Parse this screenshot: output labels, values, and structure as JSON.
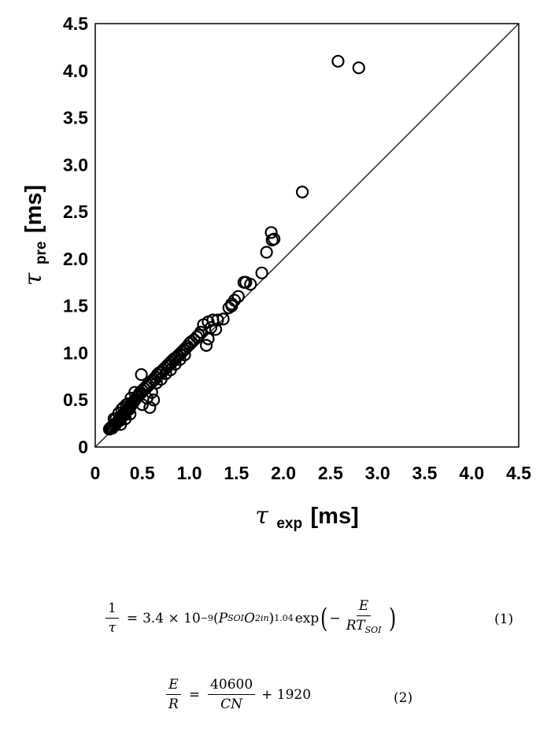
{
  "chart_data": {
    "type": "scatter",
    "xlabel": {
      "symbol": "τ",
      "subscript": "exp",
      "unit": "[ms]"
    },
    "ylabel": {
      "symbol": "τ",
      "subscript": "pre",
      "unit": "[ms]"
    },
    "xlim": [
      0,
      4.5
    ],
    "ylim": [
      0,
      4.5
    ],
    "xticks": [
      "0",
      "0.5",
      "1.0",
      "1.5",
      "2.0",
      "2.5",
      "3.0",
      "3.5",
      "4.0",
      "4.5"
    ],
    "yticks": [
      "0",
      "0.5",
      "1.0",
      "1.5",
      "2.0",
      "2.5",
      "3.0",
      "3.5",
      "4.0",
      "4.5"
    ],
    "grid": false,
    "reference_line": "y = x",
    "marker": "open-circle",
    "series": [
      {
        "points": [
          [
            0.15,
            0.19
          ],
          [
            0.16,
            0.2
          ],
          [
            0.17,
            0.21
          ],
          [
            0.18,
            0.2
          ],
          [
            0.19,
            0.22
          ],
          [
            0.2,
            0.24
          ],
          [
            0.21,
            0.23
          ],
          [
            0.22,
            0.25
          ],
          [
            0.23,
            0.26
          ],
          [
            0.24,
            0.27
          ],
          [
            0.25,
            0.29
          ],
          [
            0.26,
            0.28
          ],
          [
            0.27,
            0.31
          ],
          [
            0.28,
            0.32
          ],
          [
            0.29,
            0.33
          ],
          [
            0.3,
            0.35
          ],
          [
            0.31,
            0.34
          ],
          [
            0.32,
            0.37
          ],
          [
            0.33,
            0.38
          ],
          [
            0.34,
            0.39
          ],
          [
            0.35,
            0.41
          ],
          [
            0.36,
            0.4
          ],
          [
            0.37,
            0.43
          ],
          [
            0.38,
            0.44
          ],
          [
            0.39,
            0.46
          ],
          [
            0.4,
            0.47
          ],
          [
            0.41,
            0.48
          ],
          [
            0.42,
            0.5
          ],
          [
            0.43,
            0.51
          ],
          [
            0.44,
            0.53
          ],
          [
            0.45,
            0.54
          ],
          [
            0.46,
            0.55
          ],
          [
            0.47,
            0.57
          ],
          [
            0.48,
            0.58
          ],
          [
            0.5,
            0.6
          ],
          [
            0.52,
            0.62
          ],
          [
            0.54,
            0.64
          ],
          [
            0.56,
            0.66
          ],
          [
            0.58,
            0.68
          ],
          [
            0.6,
            0.7
          ],
          [
            0.62,
            0.72
          ],
          [
            0.64,
            0.74
          ],
          [
            0.66,
            0.77
          ],
          [
            0.68,
            0.79
          ],
          [
            0.7,
            0.8
          ],
          [
            0.72,
            0.82
          ],
          [
            0.74,
            0.84
          ],
          [
            0.76,
            0.86
          ],
          [
            0.78,
            0.88
          ],
          [
            0.8,
            0.9
          ],
          [
            0.82,
            0.92
          ],
          [
            0.84,
            0.94
          ],
          [
            0.86,
            0.95
          ],
          [
            0.88,
            0.97
          ],
          [
            0.9,
            0.99
          ],
          [
            0.92,
            1.01
          ],
          [
            0.94,
            1.03
          ],
          [
            0.96,
            1.05
          ],
          [
            0.98,
            1.07
          ],
          [
            1.0,
            1.1
          ],
          [
            1.02,
            1.12
          ],
          [
            1.05,
            1.14
          ],
          [
            1.08,
            1.17
          ],
          [
            1.1,
            1.19
          ],
          [
            1.12,
            1.22
          ],
          [
            0.22,
            0.3
          ],
          [
            0.25,
            0.36
          ],
          [
            0.3,
            0.42
          ],
          [
            0.35,
            0.46
          ],
          [
            0.38,
            0.52
          ],
          [
            0.42,
            0.58
          ],
          [
            0.2,
            0.3
          ],
          [
            0.28,
            0.4
          ],
          [
            0.33,
            0.45
          ],
          [
            0.27,
            0.24
          ],
          [
            0.32,
            0.3
          ],
          [
            0.37,
            0.35
          ],
          [
            0.5,
            0.45
          ],
          [
            0.55,
            0.52
          ],
          [
            0.6,
            0.58
          ],
          [
            0.65,
            0.68
          ],
          [
            0.7,
            0.72
          ],
          [
            0.75,
            0.78
          ],
          [
            0.8,
            0.82
          ],
          [
            0.85,
            0.88
          ],
          [
            0.9,
            0.93
          ],
          [
            0.95,
            0.98
          ],
          [
            0.49,
            0.77
          ],
          [
            0.58,
            0.42
          ],
          [
            0.62,
            0.5
          ],
          [
            1.15,
            1.3
          ],
          [
            1.2,
            1.33
          ],
          [
            1.23,
            1.27
          ],
          [
            1.25,
            1.35
          ],
          [
            1.28,
            1.25
          ],
          [
            1.2,
            1.15
          ],
          [
            1.3,
            1.35
          ],
          [
            1.36,
            1.36
          ],
          [
            1.18,
            1.08
          ],
          [
            1.42,
            1.48
          ],
          [
            1.45,
            1.52
          ],
          [
            1.48,
            1.56
          ],
          [
            1.52,
            1.6
          ],
          [
            1.45,
            1.5
          ],
          [
            1.58,
            1.75
          ],
          [
            1.6,
            1.75
          ],
          [
            1.65,
            1.73
          ],
          [
            1.77,
            1.85
          ],
          [
            1.82,
            2.07
          ],
          [
            1.87,
            2.28
          ],
          [
            1.88,
            2.2
          ],
          [
            1.9,
            2.21
          ],
          [
            2.2,
            2.71
          ],
          [
            2.58,
            4.1
          ],
          [
            2.8,
            4.03
          ]
        ]
      }
    ]
  },
  "equations": {
    "eq1": {
      "lhs_numerator": "1",
      "lhs_denominator": "τ",
      "equals": "=",
      "coefficient": "3.4 × 10",
      "coefficient_exponent": "−9",
      "paren_open": "(",
      "p_symbol": "P",
      "p_subscript": "SOI",
      "o_symbol": "O",
      "o_subscript": "2in",
      "paren_close": ")",
      "power": "1.04",
      "exp_label": "exp",
      "exp_paren_open": "(",
      "minus": "−",
      "frac_numerator": "E",
      "frac_den_r": "RT",
      "frac_den_subscript": "SOI",
      "exp_paren_close": ")",
      "number": "(1)"
    },
    "eq2": {
      "lhs_numerator": "E",
      "lhs_denominator": "R",
      "equals": "=",
      "rhs_numerator": "40600",
      "rhs_denominator": "CN",
      "plus_term": "+ 1920",
      "number": "(2)"
    }
  }
}
